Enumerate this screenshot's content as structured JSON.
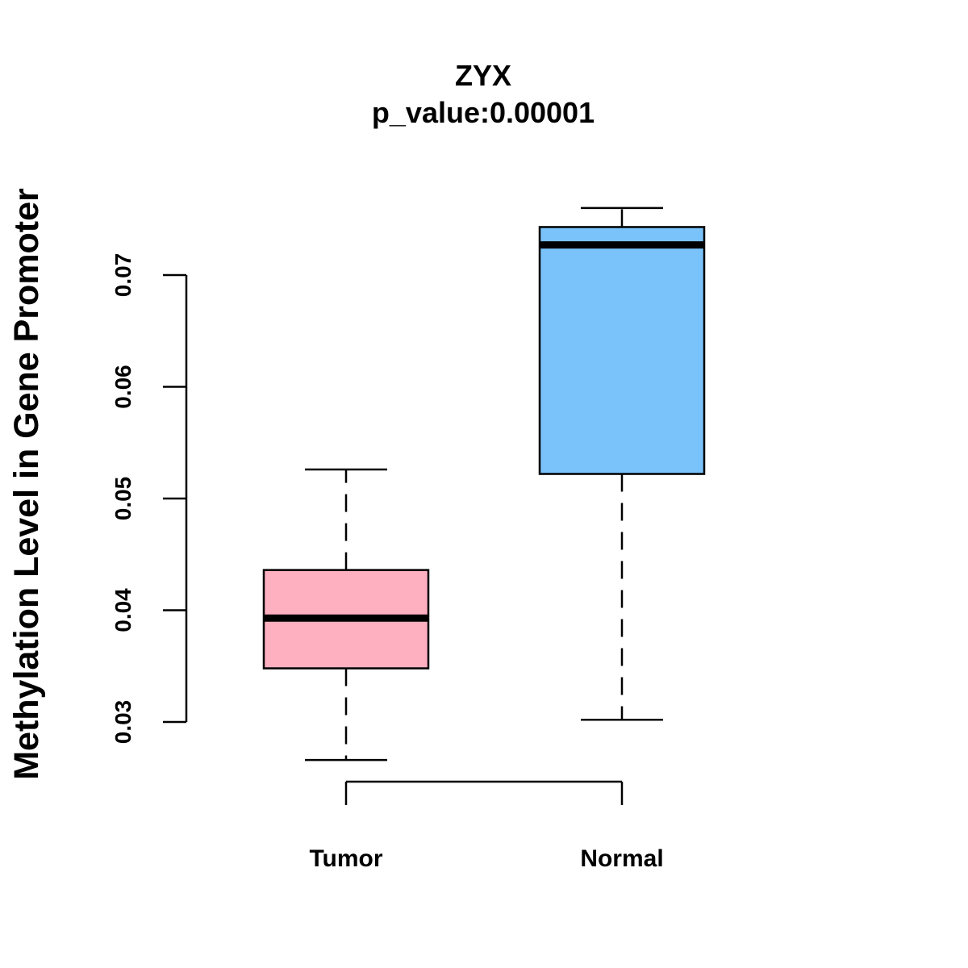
{
  "chart_data": {
    "type": "box",
    "title": "ZYX",
    "subtitle": "p_value:0.00001",
    "ylabel": "Methylation Level in Gene Promoter",
    "xlabel": "",
    "yticks": [
      0.03,
      0.04,
      0.05,
      0.06,
      0.07
    ],
    "ytick_labels": [
      "0.03",
      "0.04",
      "0.05",
      "0.06",
      "0.07"
    ],
    "categories": [
      "Tumor",
      "Normal"
    ],
    "boxes": [
      {
        "category": "Tumor",
        "min": 0.0266,
        "q1": 0.0348,
        "median": 0.0393,
        "q3": 0.0436,
        "max": 0.0526,
        "color": "#FFB0C0"
      },
      {
        "category": "Normal",
        "min": 0.0302,
        "q1": 0.0522,
        "median": 0.0727,
        "q3": 0.0743,
        "max": 0.076,
        "color": "#7AC2FA"
      }
    ],
    "grid": false,
    "legend": "none"
  }
}
